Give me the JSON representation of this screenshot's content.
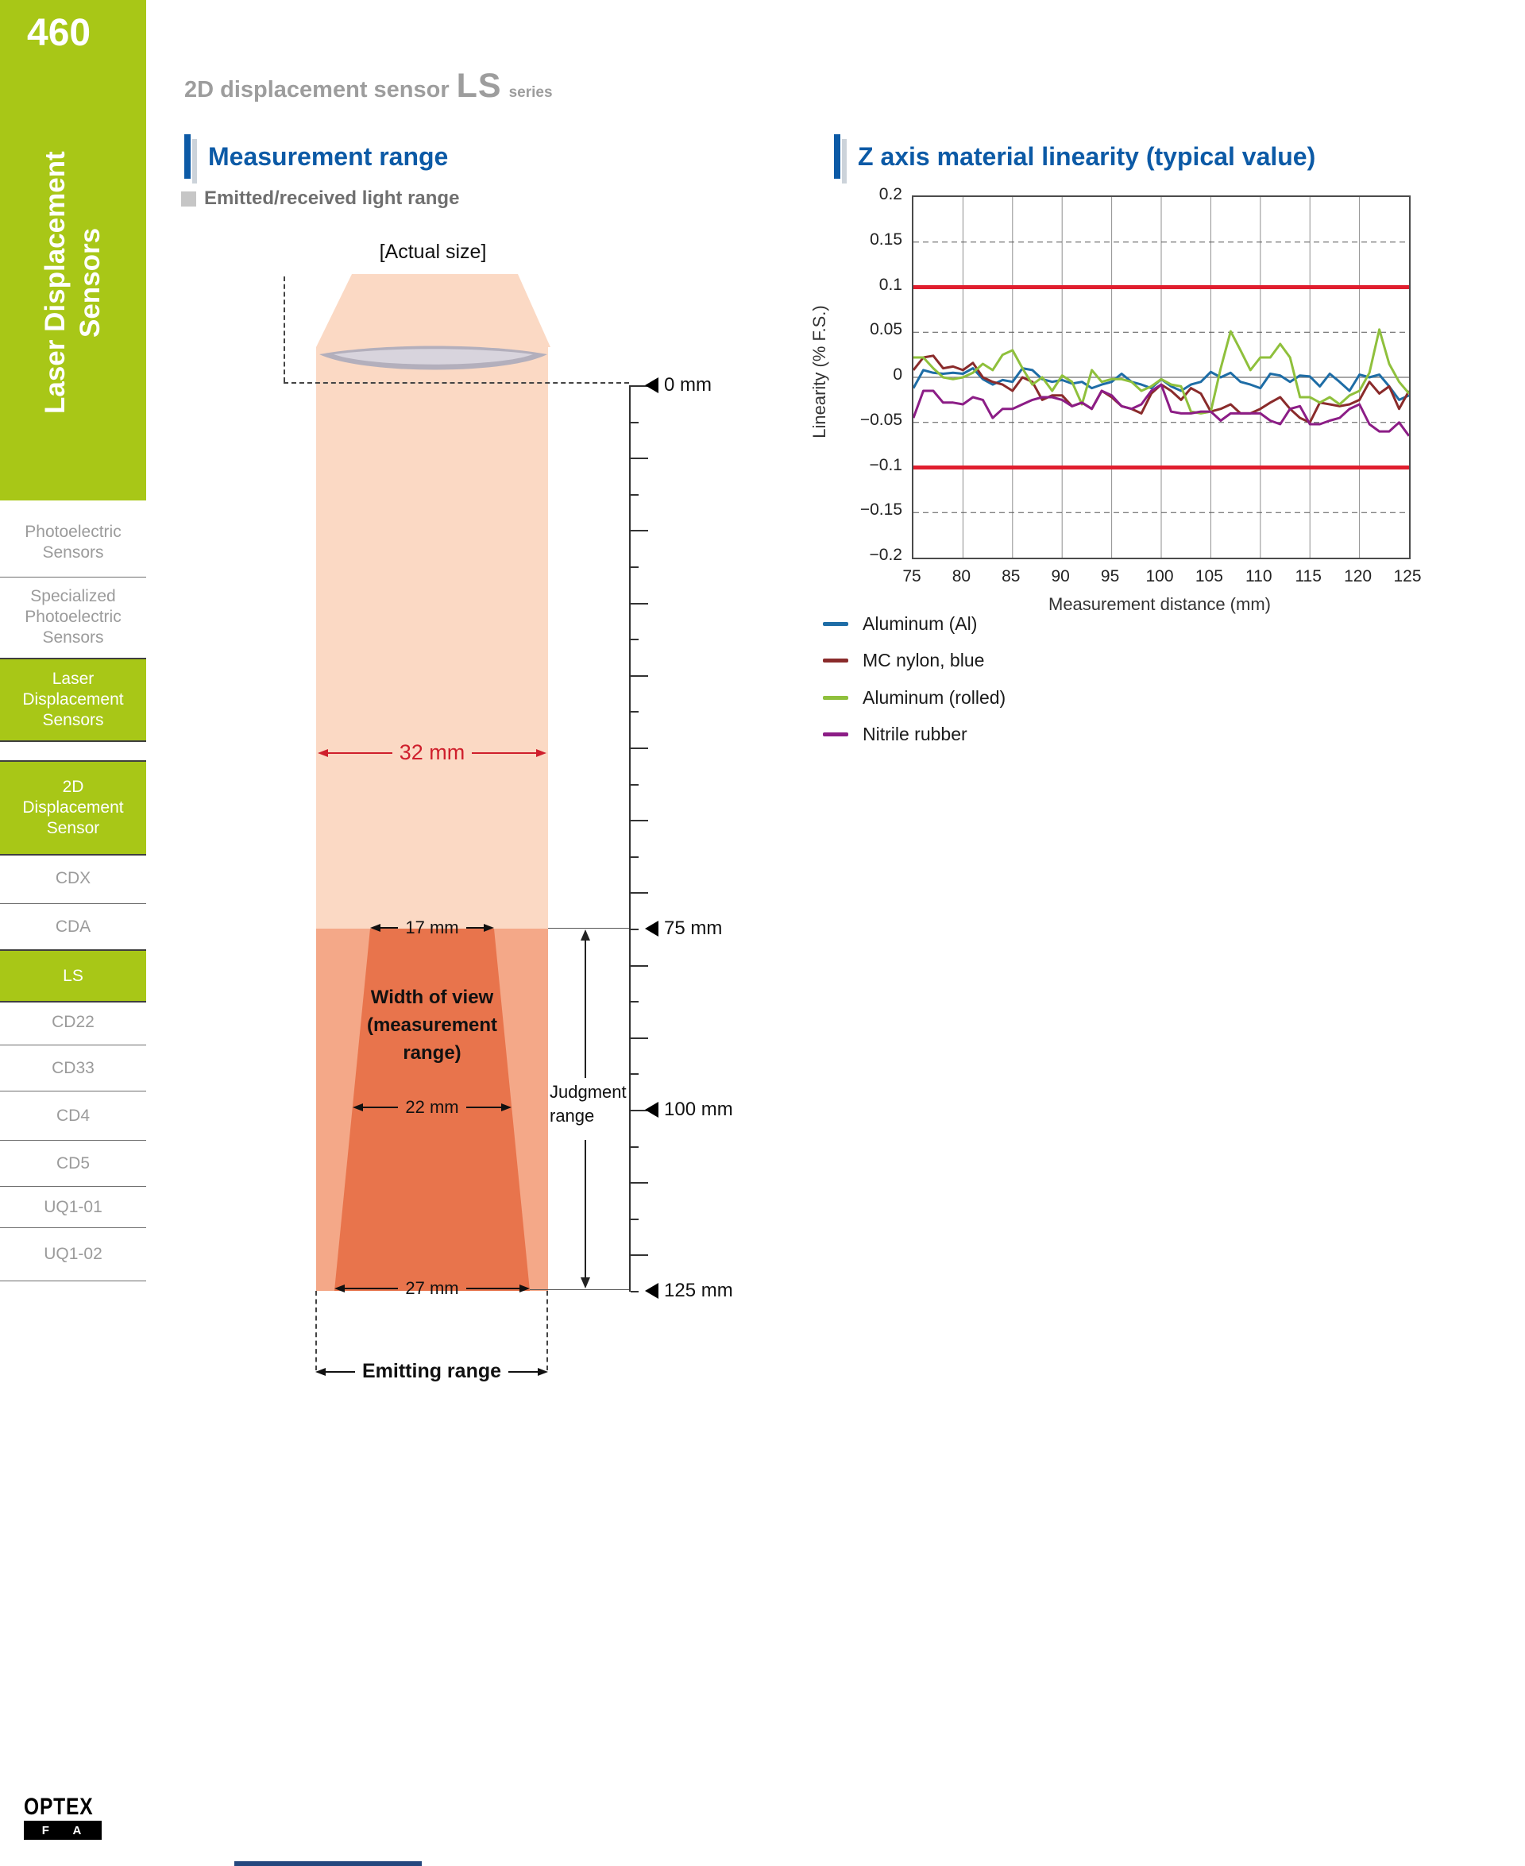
{
  "page": {
    "number": "460"
  },
  "sidebar": {
    "vertical_title": "Laser Displacement\nSensors",
    "items": [
      {
        "label": "Photoelectric\nSensors",
        "active": false
      },
      {
        "label": "Specialized\nPhotoelectric\nSensors",
        "active": false
      },
      {
        "label": "Laser\nDisplacement\nSensors",
        "active": true
      },
      {
        "label": "2D\nDisplacement\nSensor",
        "active": true
      },
      {
        "label": "CDX",
        "active": false
      },
      {
        "label": "CDA",
        "active": false
      },
      {
        "label": "LS",
        "active": true
      },
      {
        "label": "CD22",
        "active": false
      },
      {
        "label": "CD33",
        "active": false
      },
      {
        "label": "CD4",
        "active": false
      },
      {
        "label": "CD5",
        "active": false
      },
      {
        "label": "UQ1-01",
        "active": false
      },
      {
        "label": "UQ1-02",
        "active": false
      }
    ]
  },
  "header": {
    "product": "2D displacement sensor",
    "series_code": "LS",
    "series_word": "series"
  },
  "sections": {
    "left_title": "Measurement range",
    "right_title": "Z axis material linearity (typical value)",
    "light_range_label": "Emitted/received light range"
  },
  "diagram": {
    "actual_size": "[Actual size]",
    "beam_width": "32 mm",
    "top_width": "17 mm",
    "mid_width": "22 mm",
    "bottom_width": "27 mm",
    "width_of_view": "Width of view\n(measurement\nrange)",
    "judgment_range": "Judgment\nrange",
    "emitting_range": "Emitting range",
    "markers": [
      "0 mm",
      "75 mm",
      "100 mm",
      "125 mm"
    ]
  },
  "brand": {
    "line1": "OPTEX",
    "line2": "F A"
  },
  "colors": {
    "accent_blue": "#0c5aa6",
    "sidebar_green": "#a8c717",
    "beam_light": "#fbd9c4",
    "beam_mid": "#f4a888",
    "beam_dark": "#e8744c",
    "dimension_red": "#cf1f2c",
    "limit_red": "#e01e2e"
  },
  "chart_data": {
    "type": "line",
    "title": "Z axis material linearity (typical value)",
    "xlabel": "Measurement distance (mm)",
    "ylabel": "Linearity (% F.S.)",
    "xlim": [
      75,
      125
    ],
    "ylim": [
      -0.2,
      0.2
    ],
    "x_ticks": [
      75,
      80,
      85,
      90,
      95,
      100,
      105,
      110,
      115,
      120,
      125
    ],
    "y_ticks": [
      0.2,
      0.15,
      0.1,
      0.05,
      0,
      -0.05,
      -0.1,
      -0.15,
      -0.2
    ],
    "grid": true,
    "dashed_gridlines": [
      0.15,
      0.05,
      -0.05,
      -0.15
    ],
    "zero_line": 0,
    "limit_lines": {
      "values": [
        0.1,
        -0.1
      ],
      "color": "#e01e2e"
    },
    "legend_position": "below-left",
    "x": [
      75,
      76,
      77,
      78,
      79,
      80,
      81,
      82,
      83,
      84,
      85,
      86,
      87,
      88,
      89,
      90,
      91,
      92,
      93,
      94,
      95,
      96,
      97,
      98,
      99,
      100,
      101,
      102,
      103,
      104,
      105,
      106,
      107,
      108,
      109,
      110,
      111,
      112,
      113,
      114,
      115,
      116,
      117,
      118,
      119,
      120,
      121,
      122,
      123,
      124,
      125
    ],
    "series": [
      {
        "name": "Aluminum (Al)",
        "color": "#1e6da6",
        "values": [
          -0.012,
          0.008,
          0.005,
          0.004,
          0.005,
          0.004,
          0.01,
          -0.002,
          -0.008,
          -0.003,
          -0.005,
          0.01,
          0.008,
          -0.002,
          -0.005,
          -0.003,
          -0.007,
          -0.005,
          -0.012,
          -0.008,
          -0.005,
          0.004,
          -0.005,
          -0.008,
          -0.012,
          -0.002,
          -0.01,
          -0.015,
          -0.008,
          -0.005,
          0.006,
          0.0,
          0.005,
          -0.005,
          -0.008,
          -0.012,
          0.004,
          0.002,
          -0.005,
          0.002,
          0.001,
          -0.01,
          0.004,
          -0.005,
          -0.015,
          0.003,
          0.0,
          0.003,
          -0.01,
          -0.025,
          -0.02
        ]
      },
      {
        "name": "MC nylon, blue",
        "color": "#8a2b2b",
        "values": [
          0.008,
          0.022,
          0.024,
          0.01,
          0.012,
          0.008,
          0.016,
          0.0,
          -0.005,
          -0.008,
          -0.015,
          0.0,
          -0.005,
          -0.025,
          -0.02,
          -0.02,
          -0.032,
          -0.028,
          -0.035,
          -0.015,
          -0.022,
          -0.032,
          -0.035,
          -0.04,
          -0.018,
          -0.008,
          -0.015,
          -0.025,
          -0.012,
          -0.018,
          -0.038,
          -0.035,
          -0.03,
          -0.04,
          -0.04,
          -0.035,
          -0.028,
          -0.022,
          -0.035,
          -0.045,
          -0.05,
          -0.028,
          -0.03,
          -0.032,
          -0.03,
          -0.025,
          -0.005,
          -0.018,
          -0.01,
          -0.035,
          -0.015
        ]
      },
      {
        "name": "Aluminum (rolled)",
        "color": "#8fc03c",
        "values": [
          0.022,
          0.022,
          0.01,
          0.0,
          -0.002,
          0.0,
          0.005,
          0.015,
          0.008,
          0.025,
          0.03,
          0.01,
          -0.008,
          0.0,
          -0.015,
          0.002,
          -0.005,
          -0.03,
          0.008,
          -0.005,
          -0.002,
          -0.002,
          -0.005,
          -0.015,
          -0.01,
          -0.002,
          -0.008,
          -0.01,
          -0.038,
          -0.04,
          -0.038,
          0.01,
          0.051,
          0.03,
          0.008,
          0.022,
          0.022,
          0.037,
          0.022,
          -0.022,
          -0.022,
          -0.028,
          -0.022,
          -0.03,
          -0.02,
          -0.015,
          0.005,
          0.053,
          0.015,
          -0.005,
          -0.018
        ]
      },
      {
        "name": "Nitrile rubber",
        "color": "#8c1d86",
        "values": [
          -0.045,
          -0.015,
          -0.015,
          -0.028,
          -0.028,
          -0.03,
          -0.022,
          -0.025,
          -0.045,
          -0.035,
          -0.035,
          -0.03,
          -0.025,
          -0.022,
          -0.022,
          -0.025,
          -0.032,
          -0.028,
          -0.035,
          -0.015,
          -0.02,
          -0.032,
          -0.035,
          -0.03,
          -0.015,
          -0.008,
          -0.038,
          -0.04,
          -0.04,
          -0.038,
          -0.038,
          -0.048,
          -0.04,
          -0.04,
          -0.04,
          -0.04,
          -0.048,
          -0.052,
          -0.035,
          -0.032,
          -0.052,
          -0.052,
          -0.048,
          -0.045,
          -0.035,
          -0.03,
          -0.052,
          -0.06,
          -0.06,
          -0.05,
          -0.065
        ]
      }
    ]
  }
}
